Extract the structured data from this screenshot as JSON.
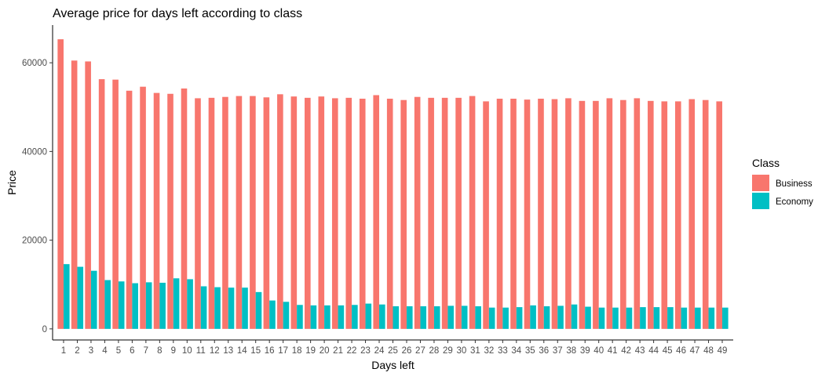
{
  "chart_data": {
    "type": "bar",
    "title": "Average price for days left according to class",
    "xlabel": "Days left",
    "ylabel": "Price",
    "categories": [
      "1",
      "2",
      "3",
      "4",
      "5",
      "6",
      "7",
      "8",
      "9",
      "10",
      "11",
      "12",
      "13",
      "14",
      "15",
      "16",
      "17",
      "18",
      "19",
      "20",
      "21",
      "22",
      "23",
      "24",
      "25",
      "26",
      "27",
      "28",
      "29",
      "30",
      "31",
      "32",
      "33",
      "34",
      "35",
      "36",
      "37",
      "38",
      "39",
      "40",
      "41",
      "42",
      "43",
      "44",
      "45",
      "46",
      "47",
      "48",
      "49"
    ],
    "series": [
      {
        "name": "Business",
        "color": "#F8766D",
        "values": [
          65300,
          60500,
          60300,
          56300,
          56200,
          53700,
          54600,
          53200,
          53000,
          54200,
          52000,
          52100,
          52300,
          52500,
          52500,
          52200,
          52900,
          52400,
          52100,
          52400,
          52000,
          52100,
          51900,
          52700,
          51900,
          51600,
          52300,
          52100,
          52100,
          52100,
          52500,
          51300,
          51900,
          51900,
          51700,
          51900,
          51800,
          52000,
          51400,
          51400,
          52000,
          51600,
          52000,
          51400,
          51300,
          51300,
          51800,
          51600,
          51300
        ]
      },
      {
        "name": "Economy",
        "color": "#00BFC4",
        "values": [
          14600,
          14000,
          13100,
          11000,
          10700,
          10300,
          10500,
          10400,
          11400,
          11200,
          9600,
          9400,
          9300,
          9300,
          8300,
          6400,
          6100,
          5400,
          5300,
          5300,
          5300,
          5400,
          5700,
          5500,
          5100,
          5100,
          5100,
          5100,
          5200,
          5200,
          5100,
          4800,
          4800,
          4900,
          5300,
          5100,
          5200,
          5500,
          5000,
          4800,
          4800,
          4800,
          4900,
          4900,
          4900,
          4800,
          4800,
          4800,
          4800
        ]
      }
    ],
    "yticks": [
      0,
      20000,
      40000,
      60000
    ],
    "ylim": [
      -2500,
      68500
    ],
    "grid": false,
    "legend": {
      "title": "Class",
      "position": "right"
    }
  }
}
